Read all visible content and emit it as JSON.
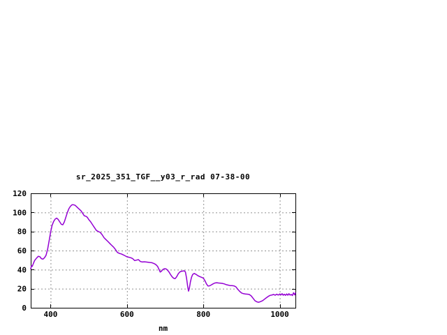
{
  "page": {
    "background": "#ffffff"
  },
  "chart_data": {
    "type": "line",
    "title": "sr_2025_351_TGF__y03_r_rad 07-38-00",
    "xlabel": "nm",
    "ylabel": "",
    "xlim": [
      348,
      1041
    ],
    "ylim": [
      0,
      120
    ],
    "xticks": [
      400,
      600,
      800,
      1000
    ],
    "yticks": [
      0,
      20,
      40,
      60,
      80,
      100,
      120
    ],
    "grid": "dashed",
    "legend": "none",
    "line_color": "#9400D3",
    "grid_color": "#909090",
    "border_color": "#000000",
    "points": [
      [
        348,
        41
      ],
      [
        350,
        44
      ],
      [
        352,
        43.5
      ],
      [
        355,
        46.5
      ],
      [
        358,
        49.5
      ],
      [
        361,
        51
      ],
      [
        364,
        52.5
      ],
      [
        368,
        54
      ],
      [
        372,
        53.5
      ],
      [
        376,
        51.5
      ],
      [
        380,
        51
      ],
      [
        384,
        52.5
      ],
      [
        388,
        55
      ],
      [
        392,
        61
      ],
      [
        396,
        70
      ],
      [
        400,
        79
      ],
      [
        404,
        86.5
      ],
      [
        408,
        90.5
      ],
      [
        412,
        93
      ],
      [
        416,
        94
      ],
      [
        420,
        92.5
      ],
      [
        424,
        90
      ],
      [
        428,
        87.5
      ],
      [
        432,
        87
      ],
      [
        436,
        90
      ],
      [
        440,
        95
      ],
      [
        444,
        100
      ],
      [
        448,
        104
      ],
      [
        452,
        106.5
      ],
      [
        456,
        108
      ],
      [
        460,
        108
      ],
      [
        464,
        107.5
      ],
      [
        468,
        106
      ],
      [
        472,
        104.5
      ],
      [
        476,
        103
      ],
      [
        480,
        101.5
      ],
      [
        484,
        99
      ],
      [
        488,
        96.5
      ],
      [
        492,
        96
      ],
      [
        496,
        95
      ],
      [
        500,
        92.5
      ],
      [
        505,
        90
      ],
      [
        510,
        87
      ],
      [
        515,
        84
      ],
      [
        520,
        81
      ],
      [
        525,
        80
      ],
      [
        530,
        79
      ],
      [
        535,
        76.5
      ],
      [
        540,
        73.5
      ],
      [
        545,
        71.5
      ],
      [
        550,
        69.5
      ],
      [
        555,
        67.5
      ],
      [
        560,
        65.5
      ],
      [
        565,
        63.5
      ],
      [
        570,
        61
      ],
      [
        575,
        58
      ],
      [
        580,
        57
      ],
      [
        585,
        56.5
      ],
      [
        590,
        55.5
      ],
      [
        595,
        54.5
      ],
      [
        600,
        53.5
      ],
      [
        605,
        53
      ],
      [
        610,
        52.5
      ],
      [
        615,
        51.5
      ],
      [
        620,
        49.5
      ],
      [
        625,
        50
      ],
      [
        630,
        50.5
      ],
      [
        635,
        48.5
      ],
      [
        640,
        48
      ],
      [
        645,
        48.2
      ],
      [
        650,
        48
      ],
      [
        655,
        47.8
      ],
      [
        660,
        47.5
      ],
      [
        665,
        47.3
      ],
      [
        670,
        46.5
      ],
      [
        675,
        45.5
      ],
      [
        680,
        43.5
      ],
      [
        684,
        40
      ],
      [
        687,
        37.5
      ],
      [
        690,
        38.2
      ],
      [
        694,
        40.2
      ],
      [
        698,
        41
      ],
      [
        702,
        40.8
      ],
      [
        706,
        39.5
      ],
      [
        710,
        37.5
      ],
      [
        714,
        34.8
      ],
      [
        718,
        32.5
      ],
      [
        722,
        31
      ],
      [
        726,
        30.5
      ],
      [
        730,
        32.5
      ],
      [
        734,
        35.5
      ],
      [
        738,
        37.5
      ],
      [
        742,
        38.3
      ],
      [
        746,
        38.5
      ],
      [
        750,
        38.8
      ],
      [
        753,
        37.5
      ],
      [
        756,
        31
      ],
      [
        759,
        22
      ],
      [
        761,
        17.5
      ],
      [
        763,
        20
      ],
      [
        766,
        27
      ],
      [
        769,
        32
      ],
      [
        772,
        35
      ],
      [
        776,
        36
      ],
      [
        780,
        35.2
      ],
      [
        785,
        33.8
      ],
      [
        790,
        32.8
      ],
      [
        795,
        32
      ],
      [
        800,
        31
      ],
      [
        804,
        28.5
      ],
      [
        808,
        25
      ],
      [
        812,
        22.8
      ],
      [
        816,
        23
      ],
      [
        820,
        23.8
      ],
      [
        825,
        25
      ],
      [
        830,
        26
      ],
      [
        835,
        26.3
      ],
      [
        840,
        26
      ],
      [
        845,
        25.8
      ],
      [
        850,
        25.5
      ],
      [
        855,
        25
      ],
      [
        860,
        24.2
      ],
      [
        865,
        23.8
      ],
      [
        870,
        23.3
      ],
      [
        875,
        23.2
      ],
      [
        880,
        23
      ],
      [
        885,
        22
      ],
      [
        890,
        19.5
      ],
      [
        895,
        17.2
      ],
      [
        900,
        15.5
      ],
      [
        905,
        14.8
      ],
      [
        910,
        14.5
      ],
      [
        915,
        14.3
      ],
      [
        920,
        14
      ],
      [
        925,
        12.5
      ],
      [
        930,
        10
      ],
      [
        935,
        7.5
      ],
      [
        940,
        6.2
      ],
      [
        945,
        5.8
      ],
      [
        950,
        6.5
      ],
      [
        955,
        7.5
      ],
      [
        960,
        9
      ],
      [
        965,
        10.5
      ],
      [
        970,
        12
      ],
      [
        975,
        13
      ],
      [
        980,
        13.5
      ],
      [
        984,
        14
      ],
      [
        988,
        13.2
      ],
      [
        992,
        14.3
      ],
      [
        996,
        13.3
      ],
      [
        1000,
        14.5
      ],
      [
        1003,
        13.5
      ],
      [
        1006,
        14.8
      ],
      [
        1009,
        13.2
      ],
      [
        1012,
        14.2
      ],
      [
        1015,
        13
      ],
      [
        1018,
        14.5
      ],
      [
        1021,
        13.2
      ],
      [
        1024,
        14.8
      ],
      [
        1027,
        13.3
      ],
      [
        1030,
        14
      ],
      [
        1033,
        12.8
      ],
      [
        1036,
        15.8
      ],
      [
        1039,
        13.5
      ],
      [
        1041,
        15.5
      ]
    ]
  }
}
